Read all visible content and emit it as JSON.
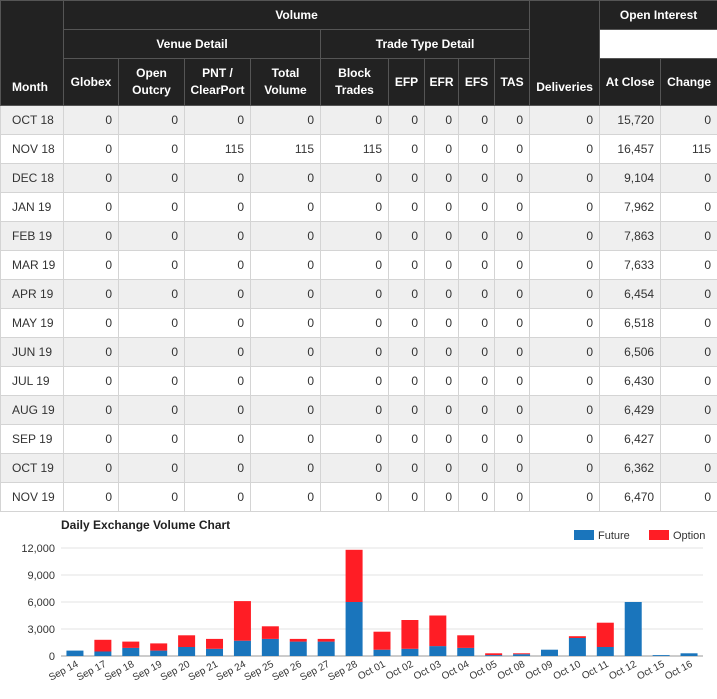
{
  "table": {
    "group_headers": {
      "volume": "Volume",
      "venue_detail": "Venue Detail",
      "trade_type_detail": "Trade Type Detail",
      "open_interest": "Open Interest"
    },
    "columns": [
      "Month",
      "Globex",
      "Open Outcry",
      "PNT / ClearPort",
      "Total Volume",
      "Block Trades",
      "EFP",
      "EFR",
      "EFS",
      "TAS",
      "Deliveries",
      "At Close",
      "Change"
    ],
    "rows": [
      [
        "OCT 18",
        "0",
        "0",
        "0",
        "0",
        "0",
        "0",
        "0",
        "0",
        "0",
        "0",
        "15,720",
        "0"
      ],
      [
        "NOV 18",
        "0",
        "0",
        "115",
        "115",
        "115",
        "0",
        "0",
        "0",
        "0",
        "0",
        "16,457",
        "115"
      ],
      [
        "DEC 18",
        "0",
        "0",
        "0",
        "0",
        "0",
        "0",
        "0",
        "0",
        "0",
        "0",
        "9,104",
        "0"
      ],
      [
        "JAN 19",
        "0",
        "0",
        "0",
        "0",
        "0",
        "0",
        "0",
        "0",
        "0",
        "0",
        "7,962",
        "0"
      ],
      [
        "FEB 19",
        "0",
        "0",
        "0",
        "0",
        "0",
        "0",
        "0",
        "0",
        "0",
        "0",
        "7,863",
        "0"
      ],
      [
        "MAR 19",
        "0",
        "0",
        "0",
        "0",
        "0",
        "0",
        "0",
        "0",
        "0",
        "0",
        "7,633",
        "0"
      ],
      [
        "APR 19",
        "0",
        "0",
        "0",
        "0",
        "0",
        "0",
        "0",
        "0",
        "0",
        "0",
        "6,454",
        "0"
      ],
      [
        "MAY 19",
        "0",
        "0",
        "0",
        "0",
        "0",
        "0",
        "0",
        "0",
        "0",
        "0",
        "6,518",
        "0"
      ],
      [
        "JUN 19",
        "0",
        "0",
        "0",
        "0",
        "0",
        "0",
        "0",
        "0",
        "0",
        "0",
        "6,506",
        "0"
      ],
      [
        "JUL 19",
        "0",
        "0",
        "0",
        "0",
        "0",
        "0",
        "0",
        "0",
        "0",
        "0",
        "6,430",
        "0"
      ],
      [
        "AUG 19",
        "0",
        "0",
        "0",
        "0",
        "0",
        "0",
        "0",
        "0",
        "0",
        "0",
        "6,429",
        "0"
      ],
      [
        "SEP 19",
        "0",
        "0",
        "0",
        "0",
        "0",
        "0",
        "0",
        "0",
        "0",
        "0",
        "6,427",
        "0"
      ],
      [
        "OCT 19",
        "0",
        "0",
        "0",
        "0",
        "0",
        "0",
        "0",
        "0",
        "0",
        "0",
        "6,362",
        "0"
      ],
      [
        "NOV 19",
        "0",
        "0",
        "0",
        "0",
        "0",
        "0",
        "0",
        "0",
        "0",
        "0",
        "6,470",
        "0"
      ]
    ]
  },
  "chart_data": {
    "type": "bar",
    "stacked": true,
    "title": "Daily Exchange Volume Chart",
    "categories": [
      "Sep 14",
      "Sep 17",
      "Sep 18",
      "Sep 19",
      "Sep 20",
      "Sep 21",
      "Sep 24",
      "Sep 25",
      "Sep 26",
      "Sep 27",
      "Sep 28",
      "Oct 01",
      "Oct 02",
      "Oct 03",
      "Oct 04",
      "Oct 05",
      "Oct 08",
      "Oct 09",
      "Oct 10",
      "Oct 11",
      "Oct 12",
      "Oct 15",
      "Oct 16"
    ],
    "series": [
      {
        "name": "Future",
        "color": "#1a75bc",
        "values": [
          600,
          500,
          900,
          600,
          1000,
          800,
          1700,
          1900,
          1600,
          1600,
          6000,
          700,
          800,
          1100,
          900,
          100,
          200,
          700,
          2000,
          1000,
          6000,
          100,
          300
        ]
      },
      {
        "name": "Option",
        "color": "#ff1d25",
        "values": [
          0,
          1300,
          700,
          800,
          1300,
          1100,
          4400,
          1400,
          300,
          300,
          5800,
          2000,
          3200,
          3400,
          1400,
          200,
          100,
          0,
          200,
          2700,
          0,
          0,
          0
        ]
      }
    ],
    "y_ticks": [
      "0",
      "3,000",
      "6,000",
      "9,000",
      "12,000"
    ],
    "ylim": [
      0,
      12000
    ],
    "grid": true,
    "legend_position": "top-right"
  }
}
